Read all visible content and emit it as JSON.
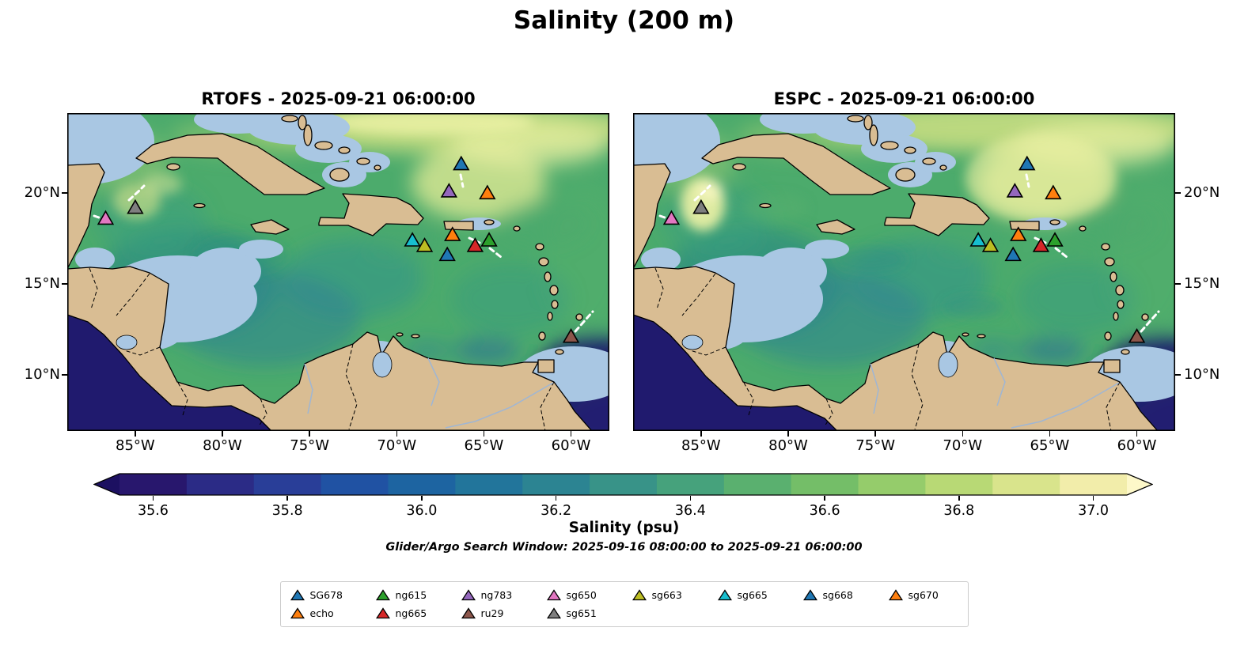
{
  "figure_title": "Salinity (200 m)",
  "panels": [
    {
      "model": "RTOFS",
      "title": "RTOFS - 2025-09-21 06:00:00"
    },
    {
      "model": "ESPC",
      "title": "ESPC - 2025-09-21 06:00:00"
    }
  ],
  "axis": {
    "lon_tick_labels": [
      "85°W",
      "80°W",
      "75°W",
      "70°W",
      "65°W",
      "60°W"
    ],
    "lat_tick_labels": [
      "20°N",
      "15°N",
      "10°N"
    ]
  },
  "colorbar": {
    "label": "Salinity (psu)",
    "tick_labels": [
      "35.6",
      "35.8",
      "36.0",
      "36.2",
      "36.4",
      "36.6",
      "36.8",
      "37.0"
    ],
    "tick_values": [
      35.6,
      35.8,
      36.0,
      36.2,
      36.4,
      36.6,
      36.8,
      37.0
    ],
    "range": [
      35.55,
      37.05
    ],
    "extend_low_color": "#1c1061",
    "extend_high_color": "#fdf8c9",
    "segment_colors": [
      "#28176d",
      "#2b2b86",
      "#293e98",
      "#2052a3",
      "#1d64a1",
      "#22759b",
      "#2c8492",
      "#389388",
      "#46a27c",
      "#5ab06f",
      "#74be68",
      "#95cc6b",
      "#b8d975",
      "#d9e48c",
      "#f2edaa"
    ]
  },
  "annotations": {
    "search_window": "Glider/Argo Search Window: 2025-09-16 08:00:00 to 2025-09-21 06:00:00"
  },
  "legend": {
    "columns": [
      [
        "SG678",
        "echo"
      ],
      [
        "ng615",
        "ng665"
      ],
      [
        "ng783",
        "ru29"
      ],
      [
        "sg650",
        "sg651"
      ],
      [
        "sg663"
      ],
      [
        "sg665"
      ],
      [
        "sg668"
      ],
      [
        "sg670"
      ]
    ]
  },
  "chart_data": {
    "type": "heatmap",
    "title": "Salinity (200 m)",
    "subplot_titles": [
      "RTOFS - 2025-09-21 06:00:00",
      "ESPC - 2025-09-21 06:00:00"
    ],
    "colorbar_label": "Salinity (psu)",
    "colorbar_ticks": [
      35.6,
      35.8,
      36.0,
      36.2,
      36.4,
      36.6,
      36.8,
      37.0
    ],
    "value_range": [
      35.55,
      37.05
    ],
    "extent": {
      "lon": [
        -88.9,
        -57.8
      ],
      "lat": [
        6.9,
        24.4
      ]
    },
    "lon_ticks": [
      -85,
      -80,
      -75,
      -70,
      -65,
      -60
    ],
    "lat_ticks": [
      20,
      15,
      10
    ],
    "search_window": {
      "start": "2025-09-16 08:00:00",
      "end": "2025-09-21 06:00:00"
    },
    "platforms": [
      {
        "id": "SG678",
        "color": "#1f77b4",
        "lon": -66.3,
        "lat": 21.6
      },
      {
        "id": "echo",
        "color": "#ff7f0e",
        "lon": -66.8,
        "lat": 17.7
      },
      {
        "id": "ng615",
        "color": "#2ca02c",
        "lon": -64.7,
        "lat": 17.4
      },
      {
        "id": "ng665",
        "color": "#d62728",
        "lon": -65.5,
        "lat": 17.1
      },
      {
        "id": "ng783",
        "color": "#9467bd",
        "lon": -67.0,
        "lat": 20.1
      },
      {
        "id": "ru29",
        "color": "#8c564b",
        "lon": -60.0,
        "lat": 12.1
      },
      {
        "id": "sg650",
        "color": "#e377c2",
        "lon": -86.7,
        "lat": 18.6
      },
      {
        "id": "sg651",
        "color": "#7f7f7f",
        "lon": -85.0,
        "lat": 19.2
      },
      {
        "id": "sg663",
        "color": "#bcbd22",
        "lon": -68.4,
        "lat": 17.1
      },
      {
        "id": "sg665",
        "color": "#17becf",
        "lon": -69.1,
        "lat": 17.4
      },
      {
        "id": "sg668",
        "color": "#1f77b4",
        "lon": -67.1,
        "lat": 16.6
      },
      {
        "id": "sg670",
        "color": "#ff7f0e",
        "lon": -64.8,
        "lat": 20.0
      }
    ]
  }
}
